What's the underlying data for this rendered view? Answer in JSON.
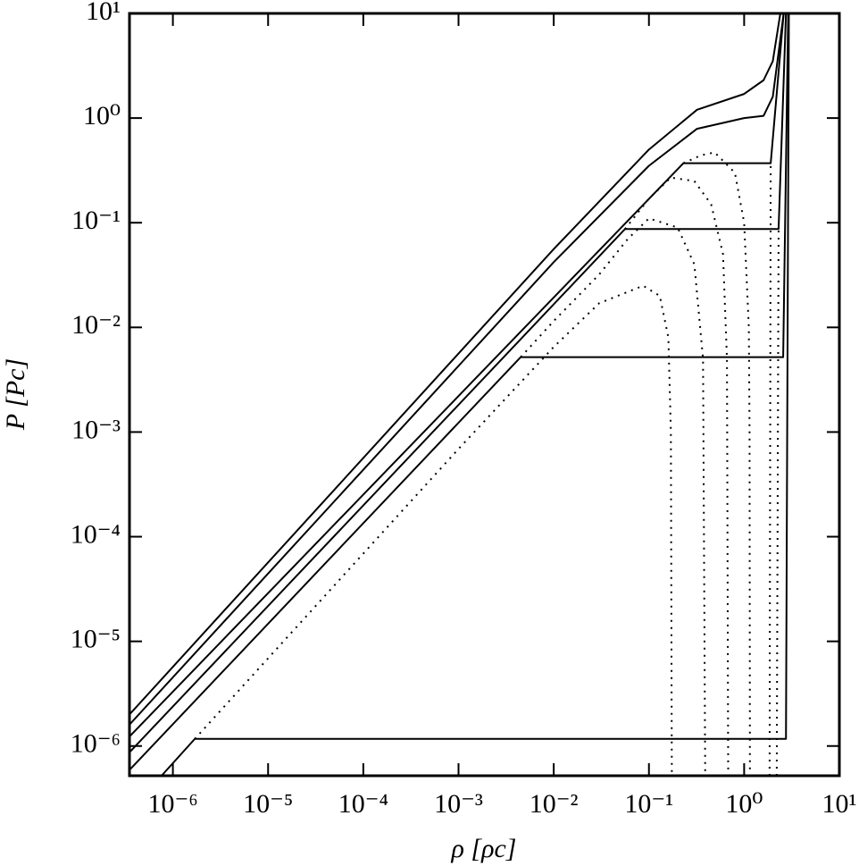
{
  "chart_data": {
    "type": "line",
    "xlabel": "ρ [ρc]",
    "ylabel": "P [Pc]",
    "xscale": "log",
    "yscale": "log",
    "xlim": [
      3.5e-07,
      10
    ],
    "ylim": [
      5.2e-07,
      10
    ],
    "xticks": [
      {
        "value": 1e-06,
        "label": "10⁻⁶"
      },
      {
        "value": 1e-05,
        "label": "10⁻⁵"
      },
      {
        "value": 0.0001,
        "label": "10⁻⁴"
      },
      {
        "value": 0.001,
        "label": "10⁻³"
      },
      {
        "value": 0.01,
        "label": "10⁻²"
      },
      {
        "value": 0.1,
        "label": "10⁻¹"
      },
      {
        "value": 1,
        "label": "10⁰"
      },
      {
        "value": 10,
        "label": "10¹"
      }
    ],
    "yticks": [
      {
        "value": 1e-06,
        "label": "10⁻⁶"
      },
      {
        "value": 1e-05,
        "label": "10⁻⁵"
      },
      {
        "value": 0.0001,
        "label": "10⁻⁴"
      },
      {
        "value": 0.001,
        "label": "10⁻³"
      },
      {
        "value": 0.01,
        "label": "10⁻²"
      },
      {
        "value": 0.1,
        "label": "10⁻¹"
      },
      {
        "value": 1,
        "label": "10⁰"
      },
      {
        "value": 10,
        "label": "10¹"
      }
    ],
    "series": [
      {
        "color": "#000000",
        "style": "solid",
        "x": [
          3.5e-07,
          0.01,
          0.1,
          0.32,
          1,
          1.6,
          2.0,
          2.4
        ],
        "values": [
          2e-06,
          0.056,
          0.5,
          1.2,
          1.7,
          2.3,
          3.5,
          10
        ]
      },
      {
        "color": "#000000",
        "style": "solid",
        "x": [
          3.5e-07,
          0.01,
          0.1,
          0.32,
          1,
          1.6,
          2.0,
          2.6
        ],
        "values": [
          1.6e-06,
          0.042,
          0.35,
          0.79,
          1.0,
          1.05,
          1.6,
          10
        ]
      },
      {
        "color": "#000000",
        "style": "solid",
        "x": [
          3.5e-07,
          0.23,
          1.9,
          2.6
        ],
        "values": [
          1.23e-06,
          0.37,
          0.37,
          10
        ]
      },
      {
        "color": "#000000",
        "style": "dotted",
        "x": [
          0.23,
          0.35,
          0.49,
          0.8,
          1.0,
          1.12,
          1.14,
          1.15
        ],
        "values": [
          0.37,
          0.44,
          0.47,
          0.3,
          0.1,
          0.01,
          0.001,
          5.2e-07
        ]
      },
      {
        "color": "#000000",
        "style": "dotted",
        "x": [
          1.85,
          1.9
        ],
        "values": [
          5.2e-07,
          0.37
        ]
      },
      {
        "color": "#000000",
        "style": "solid",
        "x": [
          3.5e-07,
          0.056,
          2.3,
          2.75
        ],
        "values": [
          8.7e-07,
          0.087,
          0.087,
          10
        ]
      },
      {
        "color": "#000000",
        "style": "dotted",
        "x": [
          0.056,
          0.1,
          0.17,
          0.3,
          0.45,
          0.6,
          0.66,
          0.68
        ],
        "values": [
          0.087,
          0.17,
          0.27,
          0.25,
          0.15,
          0.05,
          0.005,
          5.2e-07
        ]
      },
      {
        "color": "#000000",
        "style": "dotted",
        "x": [
          2.2,
          2.3
        ],
        "values": [
          5.2e-07,
          0.087
        ]
      },
      {
        "color": "#000000",
        "style": "solid",
        "x": [
          3.5e-07,
          0.0045,
          2.57,
          2.9
        ],
        "values": [
          5.9e-07,
          0.0052,
          0.0052,
          10
        ]
      },
      {
        "color": "#000000",
        "style": "dotted",
        "x": [
          0.0045,
          0.01,
          0.03,
          0.06,
          0.1,
          0.2,
          0.3,
          0.37,
          0.39
        ],
        "values": [
          0.0052,
          0.0115,
          0.032,
          0.07,
          0.11,
          0.09,
          0.04,
          0.005,
          5.2e-07
        ]
      },
      {
        "color": "#000000",
        "style": "solid",
        "x": [
          7.6e-07,
          1.7e-06,
          2.75,
          2.95
        ],
        "values": [
          5.2e-07,
          1.17e-06,
          1.17e-06,
          10
        ]
      },
      {
        "color": "#000000",
        "style": "dotted",
        "x": [
          1.7e-06,
          0.0001,
          0.001,
          0.01,
          0.03,
          0.087,
          0.13,
          0.16,
          0.17,
          0.174
        ],
        "values": [
          1.17e-06,
          6.9e-05,
          0.00069,
          0.0065,
          0.017,
          0.025,
          0.02,
          0.008,
          0.001,
          5.2e-07
        ]
      }
    ]
  }
}
